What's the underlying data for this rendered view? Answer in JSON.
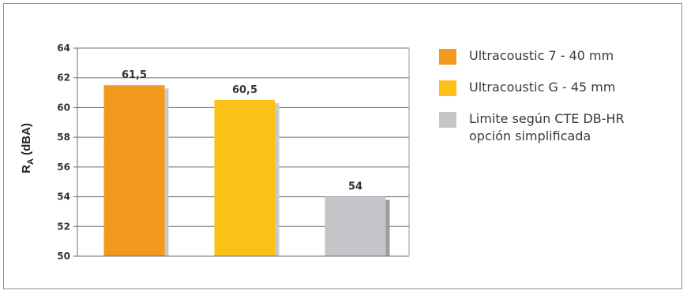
{
  "chart_data": {
    "type": "bar",
    "title": "",
    "xlabel": "",
    "ylabel": {
      "main": "R",
      "sub": "A",
      "unit": " (dBA)"
    },
    "ylim": [
      50,
      64
    ],
    "yticks": [
      50,
      52,
      54,
      56,
      58,
      60,
      62,
      64
    ],
    "grid": true,
    "legend_position": "right",
    "series": [
      {
        "name": "Ultracoustic 7 - 40 mm",
        "value": 61.5,
        "label": "61,5",
        "color": "#f39a1e",
        "shadow": "#c9c9c9"
      },
      {
        "name": "Ultracoustic G - 45 mm",
        "value": 60.5,
        "label": "60,5",
        "color": "#fbc117",
        "shadow": "#c9c9c9"
      },
      {
        "name": "Limite según CTE DB-HR\nopción simplificada",
        "value": 54,
        "label": "54",
        "color": "#c3c5c9",
        "shadow": "#9d9d9d"
      }
    ]
  }
}
